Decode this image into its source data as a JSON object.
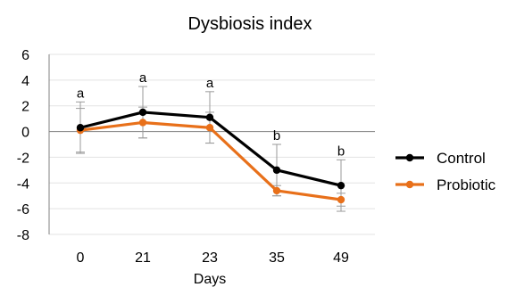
{
  "chart_data": {
    "type": "line",
    "title": "Dysbiosis index",
    "xlabel": "Days",
    "ylabel": "",
    "categories": [
      "0",
      "21",
      "23",
      "35",
      "49"
    ],
    "ylim": [
      -8,
      6
    ],
    "yticks": [
      6,
      4,
      2,
      0,
      -2,
      -4,
      -6,
      -8
    ],
    "grid": true,
    "legend_position": "right",
    "series": [
      {
        "name": "Control",
        "color": "#000000",
        "values": [
          0.3,
          1.5,
          1.1,
          -3.0,
          -4.2
        ],
        "error": [
          2.0,
          2.0,
          2.0,
          2.0,
          2.0
        ]
      },
      {
        "name": "Probiotic",
        "color": "#e8701a",
        "values": [
          0.1,
          0.7,
          0.3,
          -4.6,
          -5.3
        ],
        "error": [
          1.7,
          1.2,
          1.2,
          0.4,
          0.5
        ]
      }
    ],
    "annotations": [
      "a",
      "a",
      "a",
      "b",
      "b"
    ]
  }
}
